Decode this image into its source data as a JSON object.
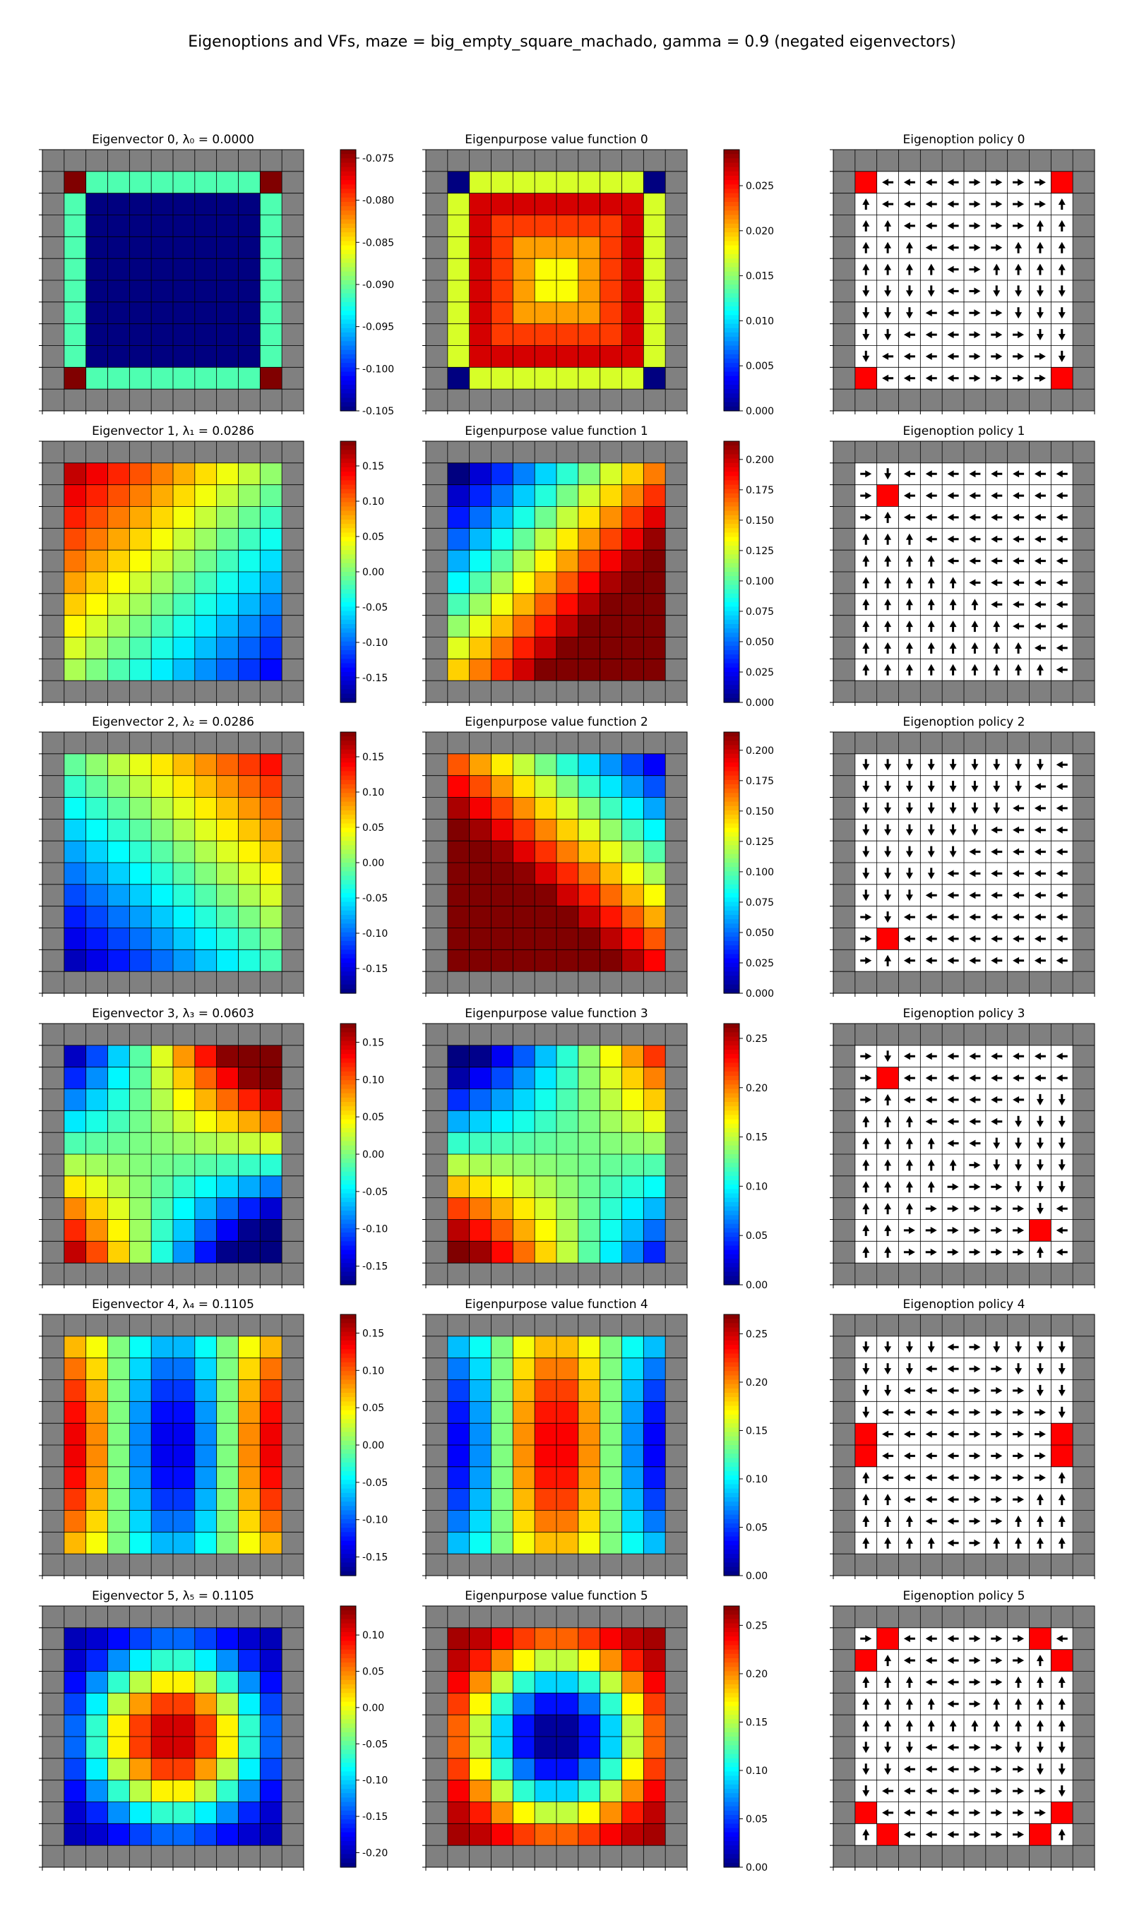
{
  "title": "Eigenoptions and VFs, maze = big_empty_square_machado, gamma = 0.9 (negated eigenvectors)",
  "colormap": "jet",
  "wall_color": "#808080",
  "goal_color": "#ff0000",
  "grid_size": 12,
  "chart_data": [
    {
      "type": "heatmap",
      "title": "Eigenvector 0,  λ₀ = 0.0000",
      "profile": {
        "kind": "const_border",
        "center": -0.105,
        "edge": -0.091,
        "corner": -0.074
      },
      "colorbar": {
        "min": -0.105,
        "max": -0.074,
        "ticks": [
          "-0.075",
          "-0.080",
          "-0.085",
          "-0.090",
          "-0.095",
          "-0.100",
          "-0.105"
        ],
        "tick_values": [
          -0.075,
          -0.08,
          -0.085,
          -0.09,
          -0.095,
          -0.1,
          -0.105
        ]
      }
    },
    {
      "type": "heatmap",
      "title": "Eigenpurpose value function 0",
      "profile": {
        "kind": "bowl",
        "center": 0.018,
        "edge": 0.028,
        "border": 0.017,
        "corner": 0.0
      },
      "colorbar": {
        "min": 0.0,
        "max": 0.029,
        "ticks": [
          "0.025",
          "0.020",
          "0.015",
          "0.010",
          "0.005",
          "0.000"
        ],
        "tick_values": [
          0.025,
          0.02,
          0.015,
          0.01,
          0.005,
          0.0
        ]
      }
    },
    {
      "type": "policy",
      "title": "Eigenoption policy 0",
      "goals": [
        [
          0,
          0
        ],
        [
          0,
          9
        ],
        [
          9,
          0
        ],
        [
          9,
          9
        ]
      ]
    },
    {
      "type": "heatmap",
      "title": "Eigenvector 1,  λ₁ = 0.0286",
      "profile": {
        "kind": "diag",
        "a": -0.017,
        "b": -0.016,
        "c": 0.16
      },
      "colorbar": {
        "min": -0.185,
        "max": 0.185,
        "ticks": [
          "0.15",
          "0.10",
          "0.05",
          "0.00",
          "-0.05",
          "-0.10",
          "-0.15"
        ],
        "tick_values": [
          0.15,
          0.1,
          0.05,
          0.0,
          -0.05,
          -0.1,
          -0.15
        ]
      }
    },
    {
      "type": "heatmap",
      "title": "Eigenpurpose value function 1",
      "profile": {
        "kind": "diag",
        "a": 0.018,
        "b": 0.016,
        "c": 0.0
      },
      "colorbar": {
        "min": 0.0,
        "max": 0.215,
        "ticks": [
          "0.200",
          "0.175",
          "0.150",
          "0.125",
          "0.100",
          "0.075",
          "0.050",
          "0.025",
          "0.000"
        ],
        "tick_values": [
          0.2,
          0.175,
          0.15,
          0.125,
          0.1,
          0.075,
          0.05,
          0.025,
          0.0
        ]
      }
    },
    {
      "type": "policy",
      "title": "Eigenoption policy 1",
      "goals": [
        [
          1,
          1
        ]
      ]
    },
    {
      "type": "heatmap",
      "title": "Eigenvector 2,  λ₂ = 0.0286",
      "profile": {
        "kind": "diag",
        "a": 0.016,
        "b": -0.017,
        "c": -0.01
      },
      "colorbar": {
        "min": -0.185,
        "max": 0.185,
        "ticks": [
          "0.15",
          "0.10",
          "0.05",
          "0.00",
          "-0.05",
          "-0.10",
          "-0.15"
        ],
        "tick_values": [
          0.15,
          0.1,
          0.05,
          0.0,
          -0.05,
          -0.1,
          -0.15
        ]
      }
    },
    {
      "type": "heatmap",
      "title": "Eigenpurpose value function 2",
      "profile": {
        "kind": "diag",
        "a": -0.016,
        "b": 0.018,
        "c": 0.17
      },
      "colorbar": {
        "min": 0.0,
        "max": 0.215,
        "ticks": [
          "0.200",
          "0.175",
          "0.150",
          "0.125",
          "0.100",
          "0.075",
          "0.050",
          "0.025",
          "0.000"
        ],
        "tick_values": [
          0.2,
          0.175,
          0.15,
          0.125,
          0.1,
          0.075,
          0.05,
          0.025,
          0.0
        ]
      }
    },
    {
      "type": "policy",
      "title": "Eigenoption policy 2",
      "goals": [
        [
          8,
          1
        ]
      ]
    },
    {
      "type": "heatmap",
      "title": "Eigenvector 3,  λ₃ = 0.0603",
      "profile": {
        "kind": "saddle",
        "amp": 0.16
      },
      "colorbar": {
        "min": -0.175,
        "max": 0.175,
        "ticks": [
          "0.15",
          "0.10",
          "0.05",
          "0.00",
          "-0.05",
          "-0.10",
          "-0.15"
        ],
        "tick_values": [
          0.15,
          0.1,
          0.05,
          0.0,
          -0.05,
          -0.1,
          -0.15
        ]
      }
    },
    {
      "type": "heatmap",
      "title": "Eigenpurpose value function 3",
      "profile": {
        "kind": "saddle_vf",
        "amp": 0.11,
        "mid": 0.13
      },
      "colorbar": {
        "min": 0.0,
        "max": 0.265,
        "ticks": [
          "0.25",
          "0.20",
          "0.15",
          "0.10",
          "0.05",
          "0.00"
        ],
        "tick_values": [
          0.25,
          0.2,
          0.15,
          0.1,
          0.05,
          0.0
        ]
      }
    },
    {
      "type": "policy",
      "title": "Eigenoption policy 3",
      "goals": [
        [
          1,
          1
        ],
        [
          8,
          8
        ]
      ]
    },
    {
      "type": "heatmap",
      "title": "Eigenvector 4,  λ₄ = 0.1105",
      "profile": {
        "kind": "cosx",
        "amp": 0.16,
        "sign": 1
      },
      "colorbar": {
        "min": -0.175,
        "max": 0.175,
        "ticks": [
          "0.15",
          "0.10",
          "0.05",
          "0.00",
          "-0.05",
          "-0.10",
          "-0.15"
        ],
        "tick_values": [
          0.15,
          0.1,
          0.05,
          0.0,
          -0.05,
          -0.1,
          -0.15
        ]
      }
    },
    {
      "type": "heatmap",
      "title": "Eigenpurpose value function 4",
      "profile": {
        "kind": "cosx",
        "amp": 0.12,
        "sign": -1,
        "offset": 0.135
      },
      "colorbar": {
        "min": 0.0,
        "max": 0.27,
        "ticks": [
          "0.25",
          "0.20",
          "0.15",
          "0.10",
          "0.05",
          "0.00"
        ],
        "tick_values": [
          0.25,
          0.2,
          0.15,
          0.1,
          0.05,
          0.0
        ]
      }
    },
    {
      "type": "policy",
      "title": "Eigenoption policy 4",
      "goals": [
        [
          4,
          0
        ],
        [
          5,
          0
        ],
        [
          4,
          9
        ],
        [
          5,
          9
        ]
      ]
    },
    {
      "type": "heatmap",
      "title": "Eigenvector 5,  λ₅ = 0.1105",
      "profile": {
        "kind": "ring",
        "amp": 0.16,
        "sign": 1,
        "offset": -0.04
      },
      "colorbar": {
        "min": -0.22,
        "max": 0.14,
        "ticks": [
          "0.10",
          "0.05",
          "0.00",
          "-0.05",
          "-0.10",
          "-0.15",
          "-0.20"
        ],
        "tick_values": [
          0.1,
          0.05,
          0.0,
          -0.05,
          -0.1,
          -0.15,
          -0.2
        ]
      }
    },
    {
      "type": "heatmap",
      "title": "Eigenpurpose value function 5",
      "profile": {
        "kind": "ring",
        "amp": 0.13,
        "sign": -1,
        "offset": 0.13
      },
      "colorbar": {
        "min": 0.0,
        "max": 0.27,
        "ticks": [
          "0.25",
          "0.20",
          "0.15",
          "0.10",
          "0.05",
          "0.00"
        ],
        "tick_values": [
          0.25,
          0.2,
          0.15,
          0.1,
          0.05,
          0.0
        ]
      }
    },
    {
      "type": "policy",
      "title": "Eigenoption policy 5",
      "goals": [
        [
          0,
          1
        ],
        [
          0,
          8
        ],
        [
          1,
          0
        ],
        [
          1,
          9
        ],
        [
          8,
          0
        ],
        [
          8,
          9
        ],
        [
          9,
          1
        ],
        [
          9,
          8
        ]
      ]
    }
  ]
}
